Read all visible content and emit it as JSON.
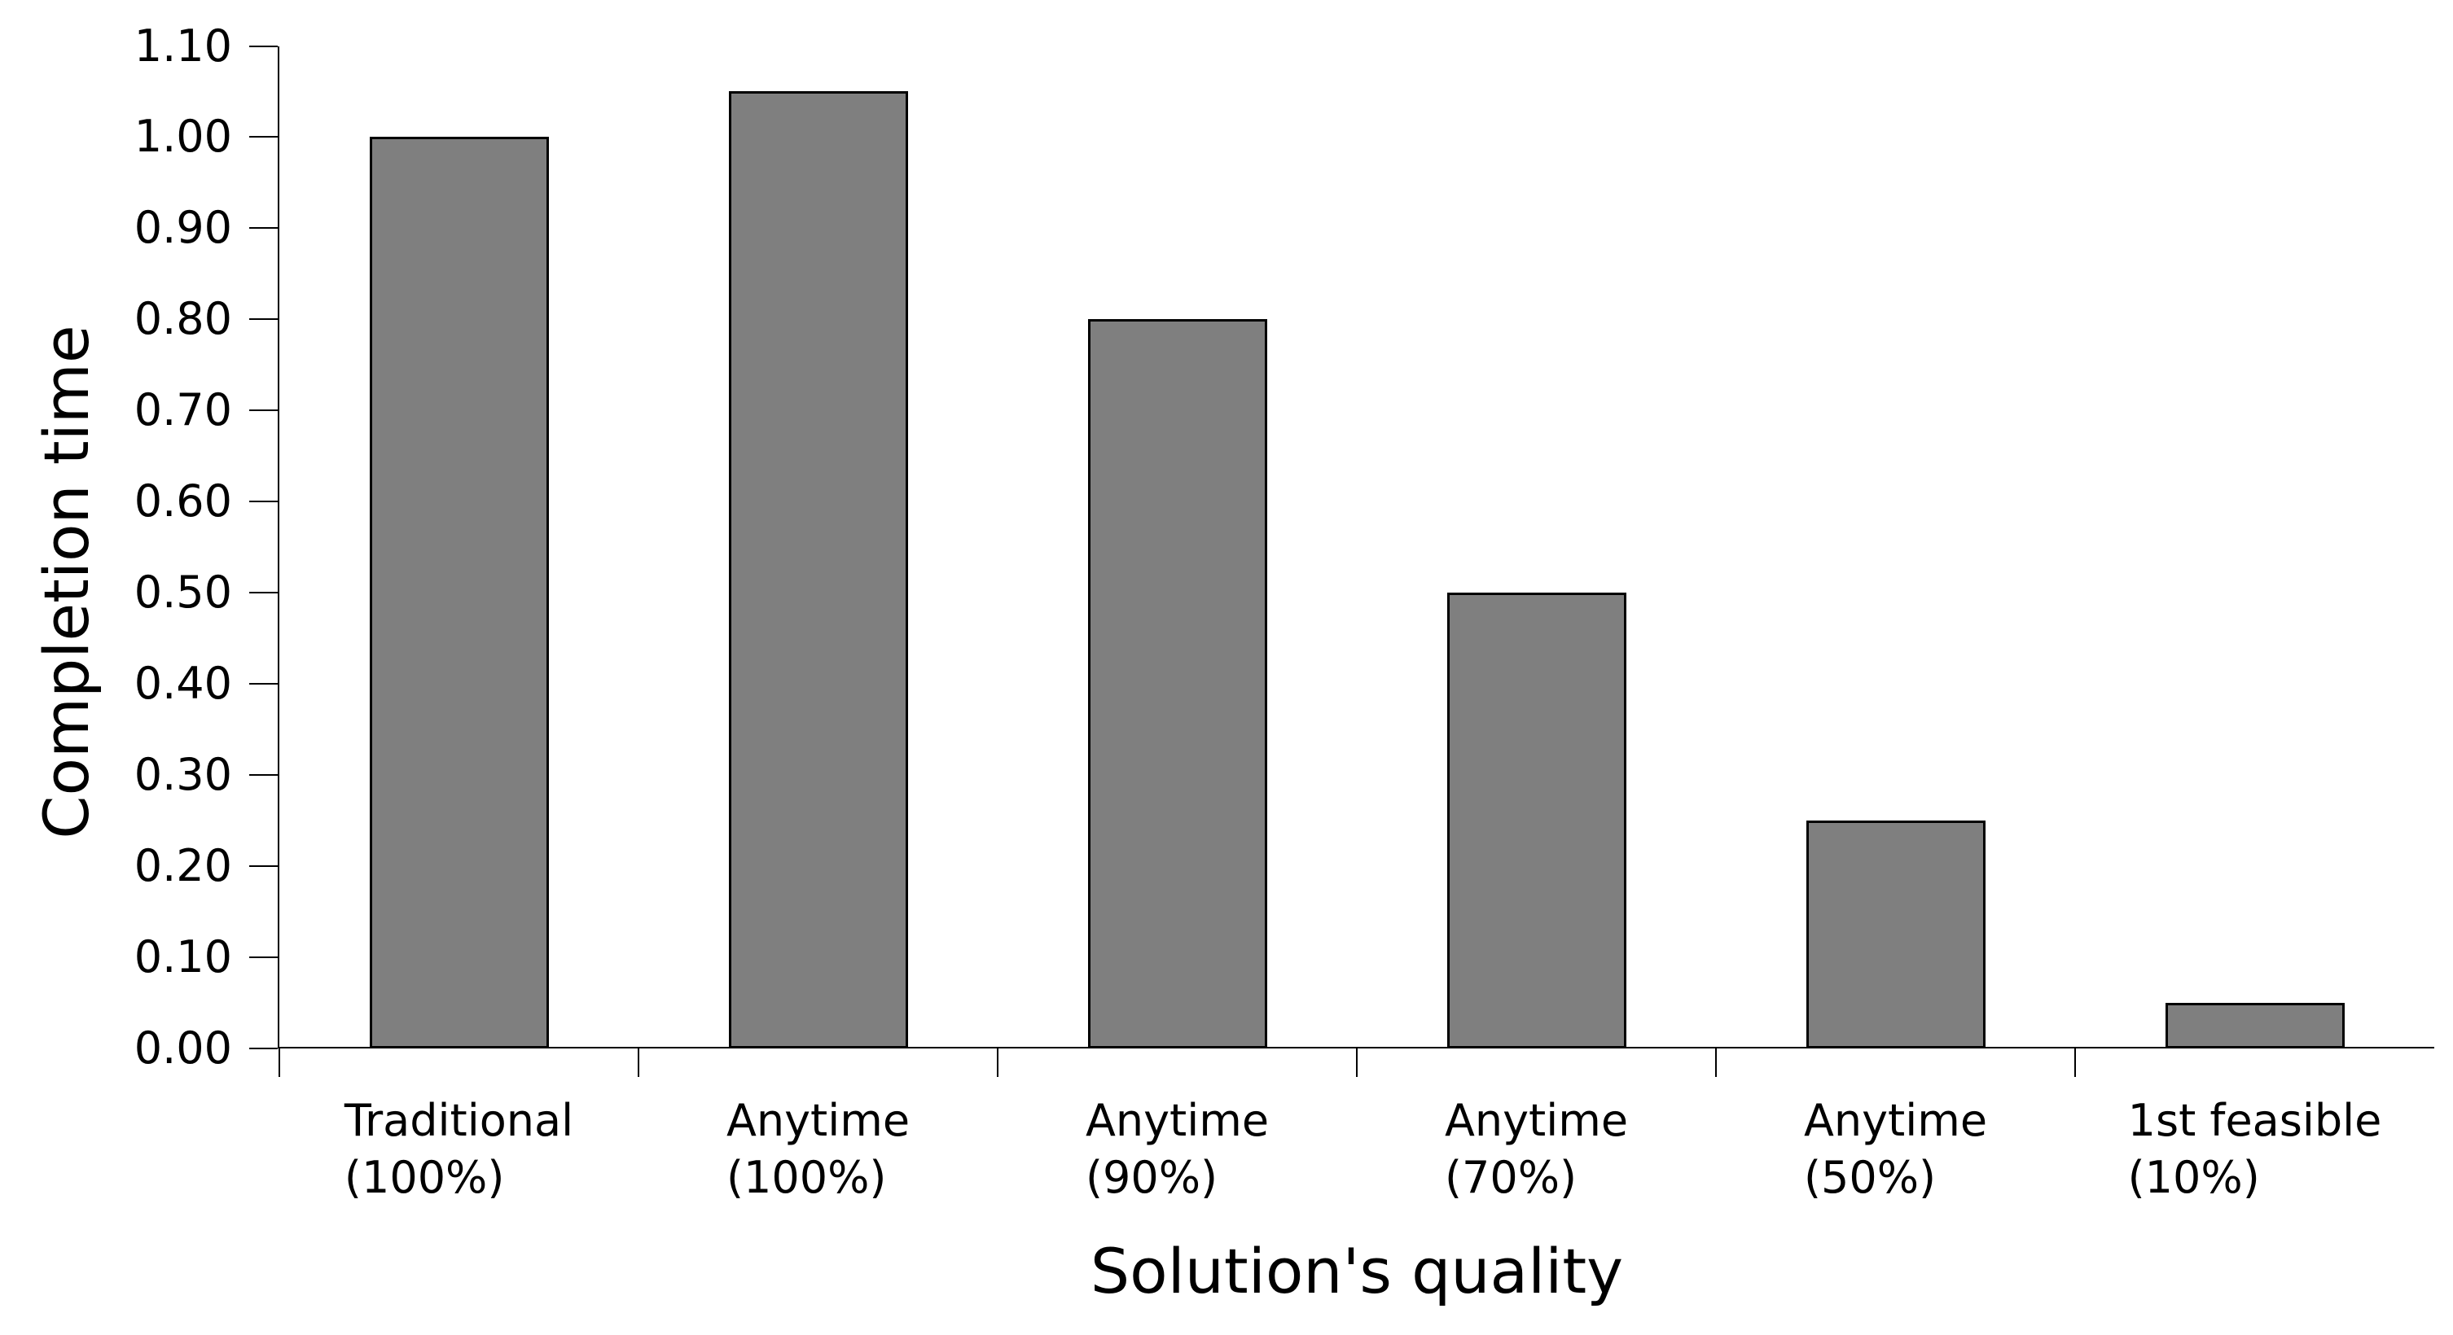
{
  "chart_data": {
    "type": "bar",
    "title": "",
    "xlabel": "Solution's quality",
    "ylabel": "Completion time",
    "categories": [
      {
        "line1": "Traditional",
        "line2": "(100%)"
      },
      {
        "line1": "Anytime",
        "line2": "(100%)"
      },
      {
        "line1": "Anytime",
        "line2": "(90%)"
      },
      {
        "line1": "Anytime",
        "line2": "(70%)"
      },
      {
        "line1": "Anytime",
        "line2": "(50%)"
      },
      {
        "line1": "1st feasible",
        "line2": "(10%)"
      }
    ],
    "values": [
      1.0,
      1.05,
      0.8,
      0.5,
      0.25,
      0.05
    ],
    "ylim": [
      0.0,
      1.1
    ],
    "ytick_step": 0.1,
    "ytick_labels": [
      "0.00",
      "0.10",
      "0.20",
      "0.30",
      "0.40",
      "0.50",
      "0.60",
      "0.70",
      "0.80",
      "0.90",
      "1.00",
      "1.10"
    ],
    "grid": false,
    "legend": "none",
    "bar_fill_color": "#7f7f7f",
    "bar_border_color": "#000000",
    "axis_color": "#000000",
    "text_color": "#000000",
    "background_color": "#ffffff"
  }
}
